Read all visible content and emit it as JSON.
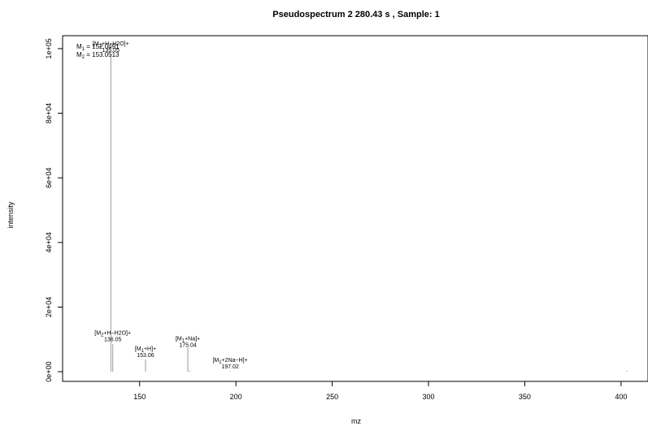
{
  "chart_data": {
    "type": "bar",
    "title": "Pseudospectrum 2 280.43 s , Sample: 1",
    "xlabel": "mz",
    "ylabel": "intensity",
    "xlim": [
      110,
      414
    ],
    "ylim": [
      -3000,
      104000
    ],
    "x_ticks": [
      150,
      200,
      250,
      300,
      350,
      400
    ],
    "x_tick_labels": [
      "150",
      "200",
      "250",
      "300",
      "350",
      "400"
    ],
    "y_ticks": [
      0,
      20000,
      40000,
      60000,
      80000,
      100000
    ],
    "y_tick_labels": [
      "0e+00",
      "2e+04",
      "4e+04",
      "6e+04",
      "8e+04",
      "1e+05"
    ],
    "grid": false,
    "bar_color": "#999999",
    "peaks": [
      {
        "mz": 135.05,
        "intensity": 98500
      },
      {
        "mz": 136.05,
        "intensity": 8500
      },
      {
        "mz": 153.06,
        "intensity": 3800
      },
      {
        "mz": 175.04,
        "intensity": 7500
      },
      {
        "mz": 176.04,
        "intensity": 300
      },
      {
        "mz": 197.02,
        "intensity": 200
      },
      {
        "mz": 403.0,
        "intensity": 300
      }
    ],
    "annotations": [
      {
        "mz": 135.05,
        "pre": "[M",
        "sub": "1",
        "post": "+H−H2O]+",
        "value": "135.05",
        "y": 101000
      },
      {
        "mz": 136.05,
        "pre": "[M",
        "sub": "2",
        "post": "+H−H2O]+",
        "value": "136.05",
        "y": 11500
      },
      {
        "mz": 153.06,
        "pre": "[M",
        "sub": "1",
        "post": "+H]+",
        "value": "153.06",
        "y": 6600
      },
      {
        "mz": 175.04,
        "pre": "[M",
        "sub": "1",
        "post": "+Na]+",
        "value": "175.04",
        "y": 9700
      },
      {
        "mz": 197.02,
        "pre": "[M",
        "sub": "1",
        "post": "+2Na−H]+",
        "value": "197.02",
        "y": 3000
      }
    ],
    "masses": [
      {
        "name": "M",
        "sub": "1",
        "value": "= 152.0491"
      },
      {
        "name": "M",
        "sub": "2",
        "value": "= 153.0513"
      }
    ]
  }
}
